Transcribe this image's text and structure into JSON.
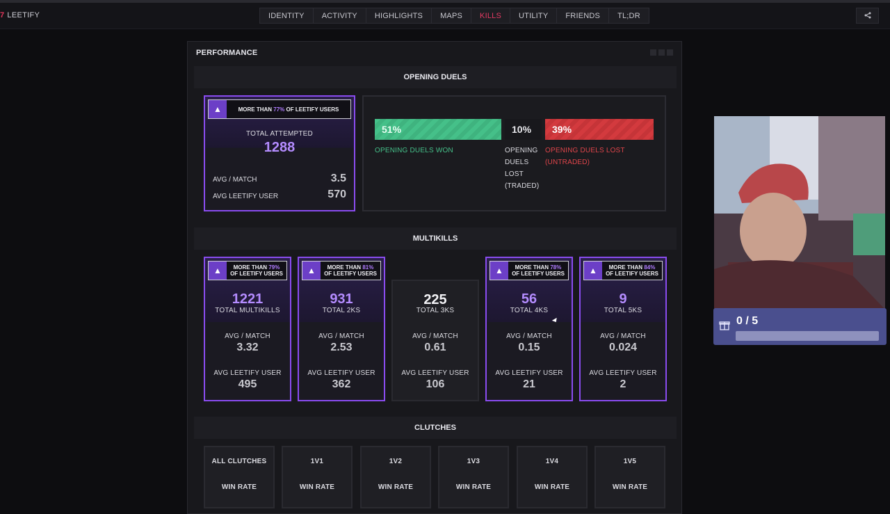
{
  "brand": {
    "name": "LEETIFY"
  },
  "nav": {
    "tabs": [
      "IDENTITY",
      "ACTIVITY",
      "HIGHLIGHTS",
      "MAPS",
      "KILLS",
      "UTILITY",
      "FRIENDS",
      "TL;DR"
    ],
    "active": "KILLS"
  },
  "panel": {
    "title": "PERFORMANCE"
  },
  "opening_duels": {
    "heading": "OPENING DUELS",
    "card": {
      "badge_prefix": "MORE THAN",
      "badge_pct": "77%",
      "badge_suffix": "OF LEETIFY USERS",
      "label": "TOTAL ATTEMPTED",
      "value": "1288",
      "avg_match_label": "AVG / MATCH",
      "avg_match": "3.5",
      "avg_user_label": "AVG LEETIFY USER",
      "avg_user": "570"
    },
    "won_pct": "51%",
    "won_label": "OPENING DUELS WON",
    "traded_pct": "10%",
    "traded_label_lines": [
      "OPENING",
      "DUELS",
      "LOST",
      "(TRADED)"
    ],
    "lost_pct": "39%",
    "lost_label_lines": [
      "OPENING DUELS LOST",
      "(UNTRADED)"
    ],
    "colors": {
      "won": "#45c089",
      "lost": "#d33a3e"
    }
  },
  "multikills": {
    "heading": "MULTIKILLS",
    "cards": [
      {
        "badge_prefix": "MORE THAN",
        "badge_pct": "79%",
        "badge_suffix": "OF LEETIFY USERS",
        "value": "1221",
        "label": "TOTAL MULTIKILLS",
        "avg_match_label": "AVG / MATCH",
        "avg_match": "3.32",
        "avg_user_label": "AVG LEETIFY USER",
        "avg_user": "495"
      },
      {
        "badge_prefix": "MORE THAN",
        "badge_pct": "81%",
        "badge_suffix": "OF LEETIFY USERS",
        "value": "931",
        "label": "TOTAL 2KS",
        "avg_match_label": "AVG / MATCH",
        "avg_match": "2.53",
        "avg_user_label": "AVG LEETIFY USER",
        "avg_user": "362"
      },
      {
        "value": "225",
        "label": "TOTAL 3KS",
        "avg_match_label": "AVG / MATCH",
        "avg_match": "0.61",
        "avg_user_label": "AVG LEETIFY USER",
        "avg_user": "106"
      },
      {
        "badge_prefix": "MORE THAN",
        "badge_pct": "78%",
        "badge_suffix": "OF LEETIFY USERS",
        "value": "56",
        "label": "TOTAL 4KS",
        "avg_match_label": "AVG / MATCH",
        "avg_match": "0.15",
        "avg_user_label": "AVG LEETIFY USER",
        "avg_user": "21"
      },
      {
        "badge_prefix": "MORE THAN",
        "badge_pct": "84%",
        "badge_suffix": "OF LEETIFY USERS",
        "value": "9",
        "label": "TOTAL 5KS",
        "avg_match_label": "AVG / MATCH",
        "avg_match": "0.024",
        "avg_user_label": "AVG LEETIFY USER",
        "avg_user": "2"
      }
    ]
  },
  "clutches": {
    "heading": "CLUTCHES",
    "cards": [
      {
        "title": "ALL CLUTCHES",
        "label": "WIN RATE"
      },
      {
        "title": "1V1",
        "label": "WIN RATE"
      },
      {
        "title": "1V2",
        "label": "WIN RATE"
      },
      {
        "title": "1V3",
        "label": "WIN RATE"
      },
      {
        "title": "1V4",
        "label": "WIN RATE"
      },
      {
        "title": "1V5",
        "label": "WIN RATE"
      }
    ]
  },
  "overlay": {
    "goal_text": "0 / 5",
    "goal_progress": 0
  },
  "icons": {
    "share": "share-icon",
    "badge": "leetify-a-icon",
    "gift": "gift-icon"
  }
}
